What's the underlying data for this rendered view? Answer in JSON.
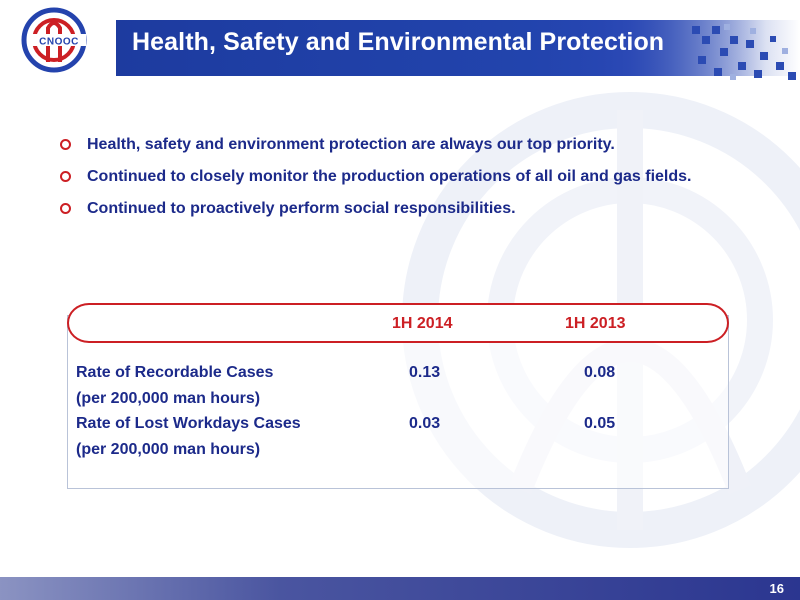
{
  "header": {
    "title": "Health, Safety and Environmental Protection",
    "logo_text": "CNOOC",
    "bar_color": "#1d3b9f"
  },
  "bullets": [
    {
      "text": "Health, safety and environment protection are always our top priority."
    },
    {
      "text": "Continued to closely monitor the production operations of all oil and gas fields."
    },
    {
      "text": "Continued to proactively perform social responsibilities."
    }
  ],
  "table": {
    "columns": [
      "1H 2014",
      "1H 2013"
    ],
    "rows": [
      {
        "label": "Rate of Recordable Cases",
        "sublabel": "(per 200,000 man hours)",
        "values": [
          "0.13",
          "0.08"
        ]
      },
      {
        "label": "Rate of Lost Workdays Cases",
        "sublabel": "(per 200,000 man hours)",
        "values": [
          "0.03",
          "0.05"
        ]
      }
    ]
  },
  "footer": {
    "page_number": "16"
  },
  "colors": {
    "accent_red": "#cc1f24",
    "text_blue": "#1c2a8a",
    "footer_blue": "#2b3690"
  }
}
